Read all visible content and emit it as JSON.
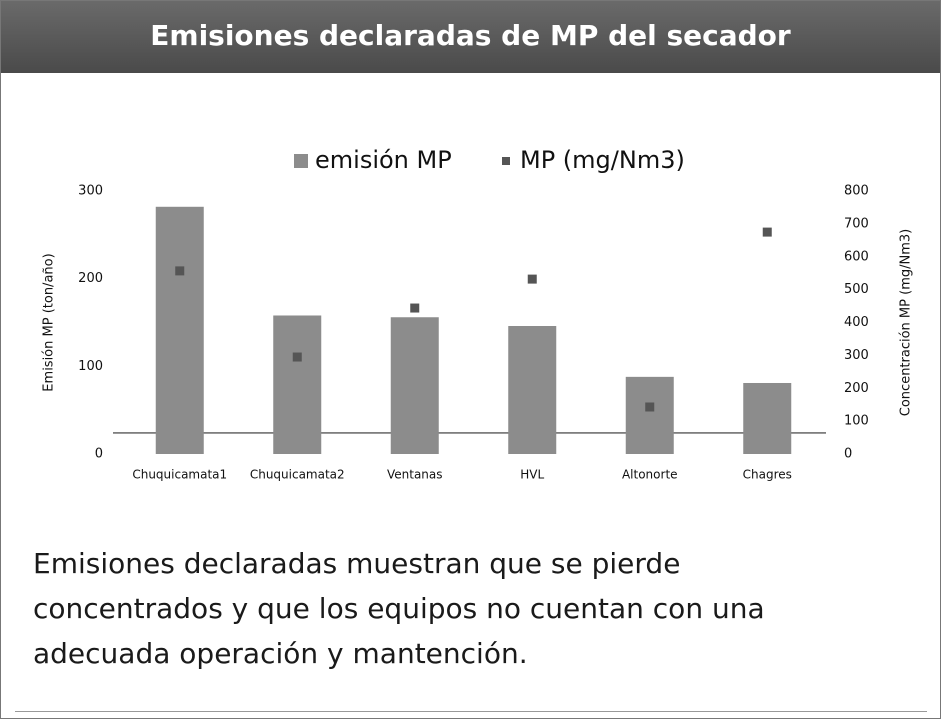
{
  "header": {
    "title": "Emisiones declaradas de MP del secador"
  },
  "chart_data": {
    "type": "bar",
    "categories": [
      "Chuquicamata1",
      "Chuquicamata2",
      "Ventanas",
      "HVL",
      "Altonorte",
      "Chagres"
    ],
    "series": [
      {
        "name": "emisión MP",
        "color": "#8c8c8c",
        "values": [
          282,
          158,
          156,
          146,
          88,
          81
        ]
      },
      {
        "name": "MP (mg/Nm3)",
        "color": "#555555",
        "axis": "y2",
        "values": [
          557,
          295,
          444,
          532,
          143,
          675
        ]
      }
    ],
    "ylabel": "Emisión  MP  (ton/año)",
    "y2label": "Concentración MP (mg/Nm3)",
    "ylim": [
      0,
      300
    ],
    "yticks": [
      0,
      100,
      200,
      300
    ],
    "y2lim": [
      0,
      800
    ],
    "y2ticks": [
      0,
      100,
      200,
      300,
      400,
      500,
      600,
      700,
      800
    ],
    "hline": 24,
    "legend": "top"
  },
  "body": {
    "text": "Emisiones declaradas muestran que se pierde concentrados y que los equipos no cuentan con una adecuada operación y mantención."
  }
}
